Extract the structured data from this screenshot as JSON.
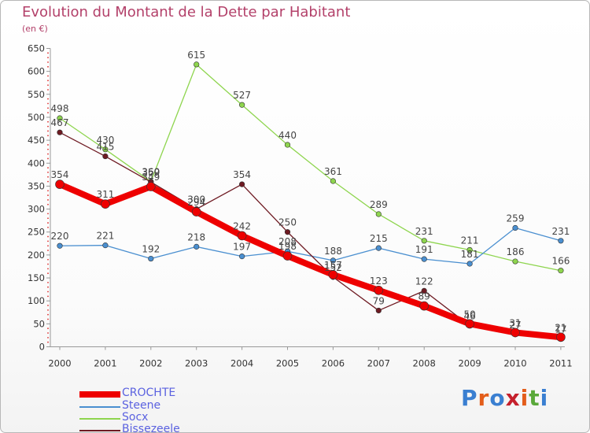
{
  "chart_data": {
    "type": "line",
    "title": "Evolution du Montant de la Dette par Habitant",
    "subtitle": "(en €)",
    "categories": [
      "2000",
      "2001",
      "2002",
      "2003",
      "2004",
      "2005",
      "2006",
      "2007",
      "2008",
      "2009",
      "2010",
      "2011"
    ],
    "ylim": [
      0,
      650
    ],
    "yticks": [
      0,
      50,
      100,
      150,
      200,
      250,
      300,
      350,
      400,
      450,
      500,
      550,
      600,
      650
    ],
    "grid": false,
    "legend_position": "bottom-left",
    "series": [
      {
        "name": "CROCHTE",
        "color": "#ee0000",
        "values": [
          354,
          311,
          349,
          294,
          242,
          198,
          157,
          123,
          89,
          50,
          31,
          21
        ]
      },
      {
        "name": "Steene",
        "color": "#4a8fd0",
        "values": [
          220,
          221,
          192,
          218,
          197,
          208,
          188,
          215,
          191,
          181,
          259,
          231
        ]
      },
      {
        "name": "Socx",
        "color": "#8ed54e",
        "values": [
          498,
          430,
          360,
          615,
          527,
          440,
          361,
          289,
          231,
          211,
          186,
          166
        ]
      },
      {
        "name": "Bissezeele",
        "color": "#6e1a22",
        "values": [
          467,
          415,
          359,
          300,
          354,
          250,
          152,
          79,
          122,
          46,
          27,
          17
        ]
      }
    ]
  },
  "logo": {
    "text": "Proxiti",
    "colors": [
      "#3a7fd1",
      "#e35d1a",
      "#3a7fd1",
      "#c5202c",
      "#e35d1a",
      "#5aa83a",
      "#3a7fd1"
    ]
  }
}
